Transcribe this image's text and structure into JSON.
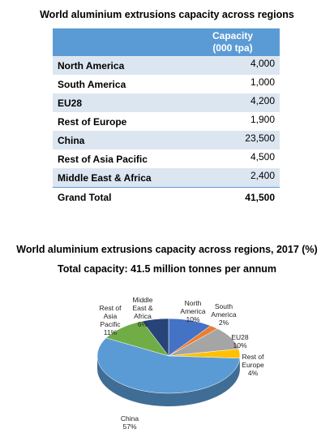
{
  "table": {
    "title": "World aluminium  extrusions capacity across regions",
    "header": [
      "Capacity",
      "(000 tpa)"
    ],
    "rows": [
      [
        "North America",
        "4,000"
      ],
      [
        "South America",
        "1,000"
      ],
      [
        "EU28",
        "4,200"
      ],
      [
        "Rest of Europe",
        "1,900"
      ],
      [
        "China",
        "23,500"
      ],
      [
        "Rest of Asia Pacific",
        "4,500"
      ],
      [
        "Middle East & Africa",
        "2,400"
      ]
    ],
    "total": [
      "Grand Total",
      "41,500"
    ]
  },
  "chart_data": {
    "type": "pie",
    "title": "World aluminium  extrusions capacity across regions, 2017 (%)",
    "subtitle": "Total capacity: 41.5 million tonnes per annum",
    "categories": [
      "North America",
      "South America",
      "EU28",
      "Rest of Europe",
      "China",
      "Rest of Asia Pacific",
      "Middle East & Africa"
    ],
    "values": [
      10,
      2,
      10,
      4,
      57,
      11,
      6
    ],
    "value_labels": [
      "10%",
      "2%",
      "10%",
      "4%",
      "57%",
      "11%",
      "6%"
    ],
    "colors": [
      "#4472c4",
      "#ed7d31",
      "#a5a5a5",
      "#ffc000",
      "#5b9bd5",
      "#70ad47",
      "#264478"
    ]
  }
}
